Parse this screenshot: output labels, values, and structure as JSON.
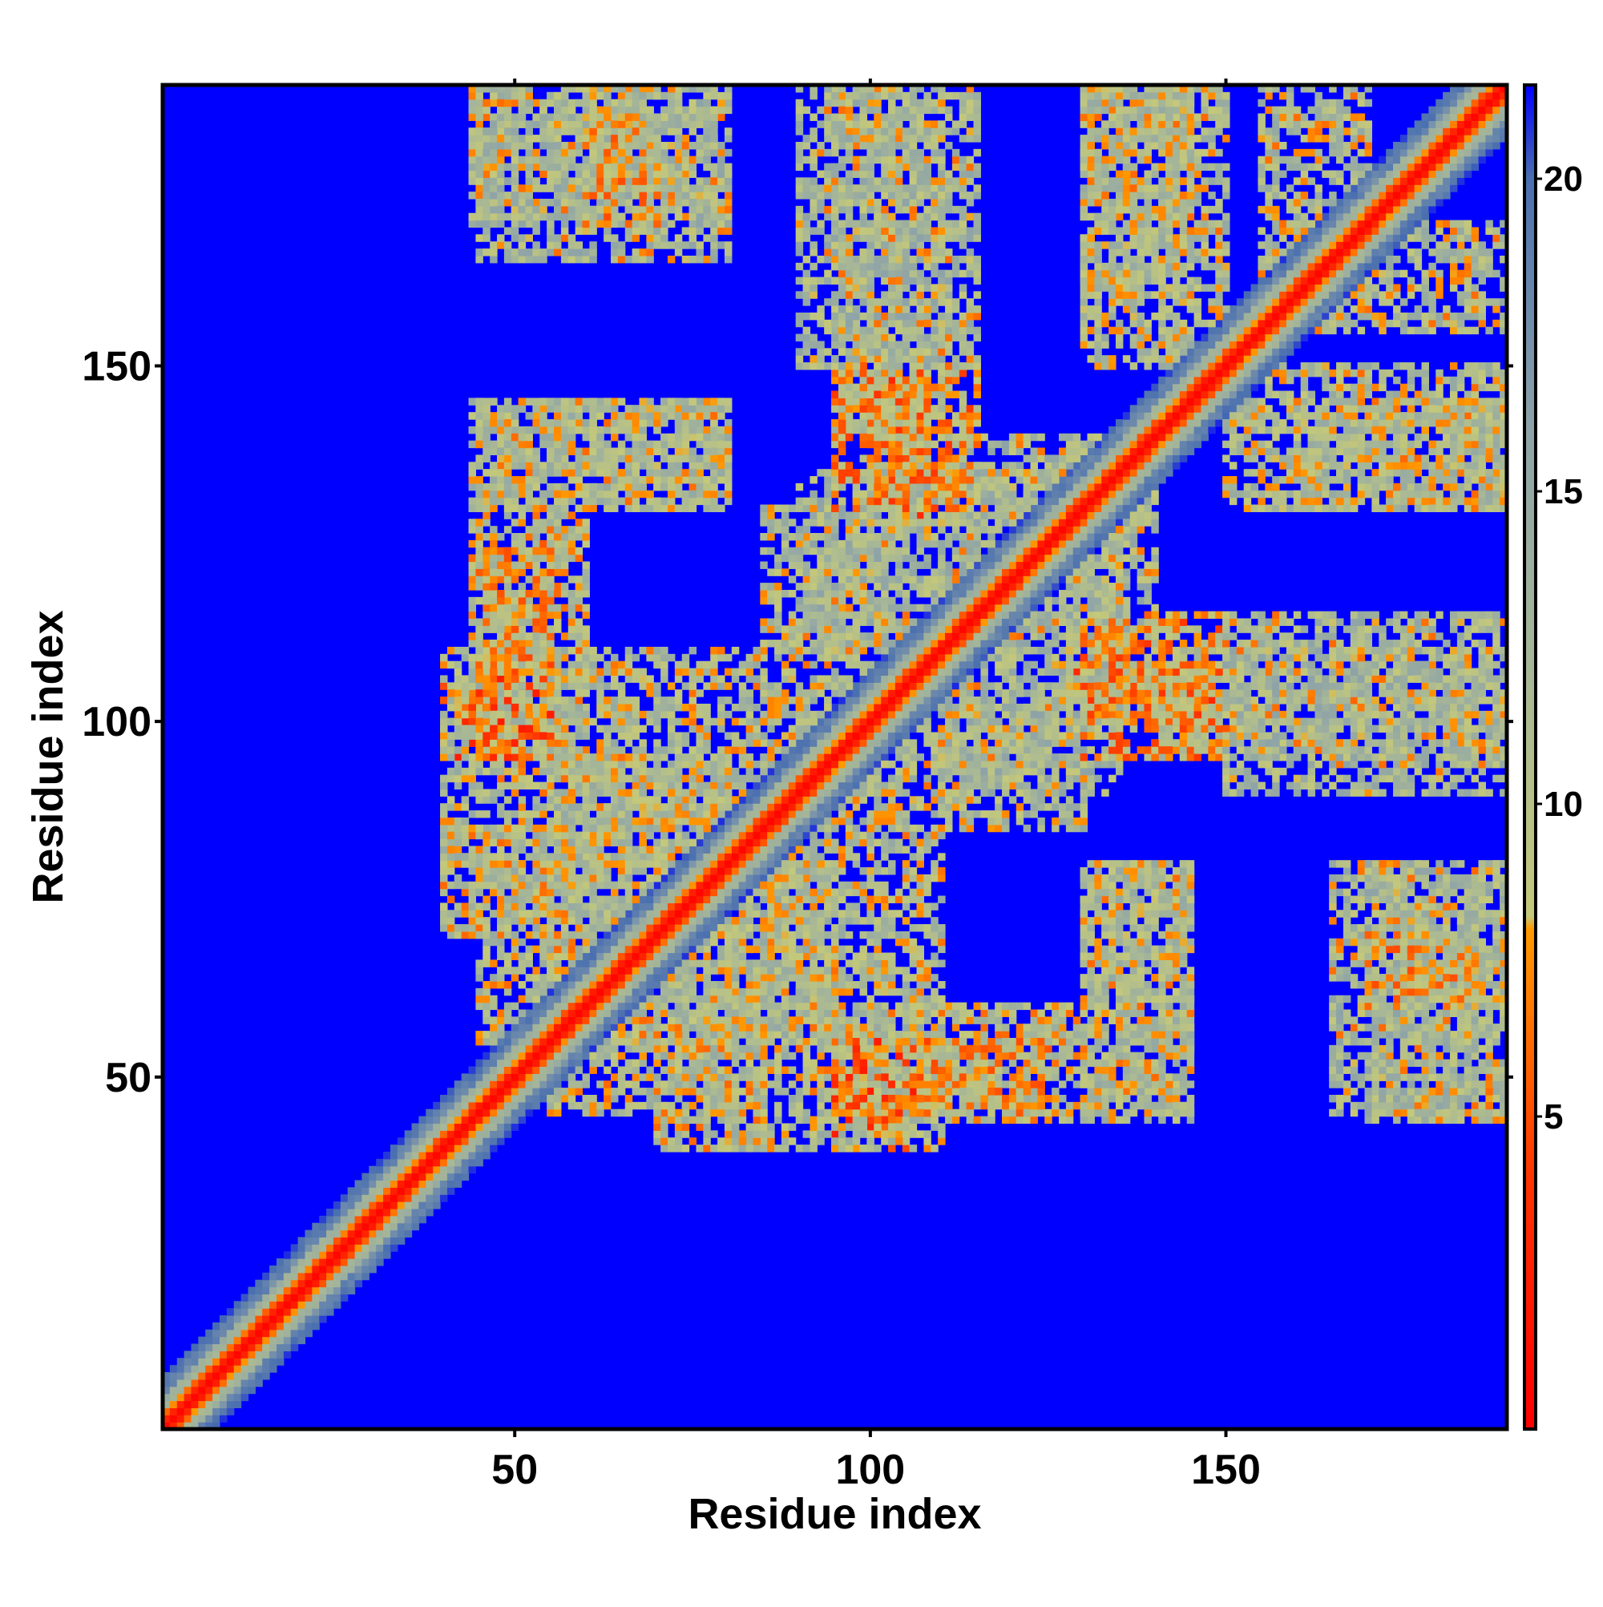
{
  "chart_data": {
    "type": "heatmap",
    "title": "",
    "xlabel": "Residue index",
    "ylabel": "Residue index",
    "n_residues": 189,
    "xlim": [
      1,
      189
    ],
    "ylim": [
      1,
      189
    ],
    "x_ticks": [
      50,
      100,
      150
    ],
    "y_ticks": [
      50,
      100,
      150
    ],
    "colorbar": {
      "position": "right",
      "range": [
        0,
        21.5
      ],
      "ticks": [
        5,
        10,
        15,
        20
      ],
      "color_stops": [
        {
          "value": 0,
          "color": "#ff0000"
        },
        {
          "value": 4,
          "color": "#ff3300"
        },
        {
          "value": 8,
          "color": "#ff9900"
        },
        {
          "value": 8.2,
          "color": "#c4c87a"
        },
        {
          "value": 12,
          "color": "#a8b896"
        },
        {
          "value": 16,
          "color": "#8ea3a8"
        },
        {
          "value": 20,
          "color": "#4a6fb0"
        },
        {
          "value": 21.5,
          "color": "#0000ff"
        }
      ]
    },
    "values_description_note": "",
    "background_color": "#0000ff",
    "diagonal_color": "#ff0000",
    "contact_regions": [
      {
        "x": [
          44,
          80
        ],
        "y": [
          170,
          189
        ],
        "level": 11
      },
      {
        "x": [
          95,
          110
        ],
        "y": [
          140,
          189
        ],
        "level": 11
      },
      {
        "x": [
          130,
          150
        ],
        "y": [
          150,
          189
        ],
        "level": 11
      },
      {
        "x": [
          155,
          170
        ],
        "y": [
          160,
          189
        ],
        "level": 11
      },
      {
        "x": [
          44,
          80
        ],
        "y": [
          130,
          145
        ],
        "level": 11
      },
      {
        "x": [
          100,
          110
        ],
        "y": [
          128,
          148
        ],
        "level": 7
      },
      {
        "x": [
          160,
          189
        ],
        "y": [
          130,
          145
        ],
        "level": 11
      },
      {
        "x": [
          44,
          60
        ],
        "y": [
          95,
          130
        ],
        "level": 10
      },
      {
        "x": [
          40,
          50
        ],
        "y": [
          95,
          105
        ],
        "level": 6
      },
      {
        "x": [
          85,
          105
        ],
        "y": [
          90,
          130
        ],
        "level": 11
      },
      {
        "x": [
          110,
          135
        ],
        "y": [
          90,
          140
        ],
        "level": 12
      },
      {
        "x": [
          130,
          150
        ],
        "y": [
          95,
          115
        ],
        "level": 8
      },
      {
        "x": [
          150,
          189
        ],
        "y": [
          90,
          115
        ],
        "level": 12
      },
      {
        "x": [
          40,
          60
        ],
        "y": [
          70,
          85
        ],
        "level": 10
      },
      {
        "x": [
          55,
          80
        ],
        "y": [
          45,
          95
        ],
        "level": 11
      },
      {
        "x": [
          80,
          110
        ],
        "y": [
          40,
          85
        ],
        "level": 11
      },
      {
        "x": [
          95,
          110
        ],
        "y": [
          45,
          55
        ],
        "level": 6
      },
      {
        "x": [
          105,
          125
        ],
        "y": [
          45,
          55
        ],
        "level": 9
      },
      {
        "x": [
          130,
          145
        ],
        "y": [
          45,
          80
        ],
        "level": 11
      },
      {
        "x": [
          165,
          189
        ],
        "y": [
          45,
          80
        ],
        "level": 12
      },
      {
        "x": [
          170,
          185
        ],
        "y": [
          60,
          70
        ],
        "level": 9
      }
    ]
  }
}
